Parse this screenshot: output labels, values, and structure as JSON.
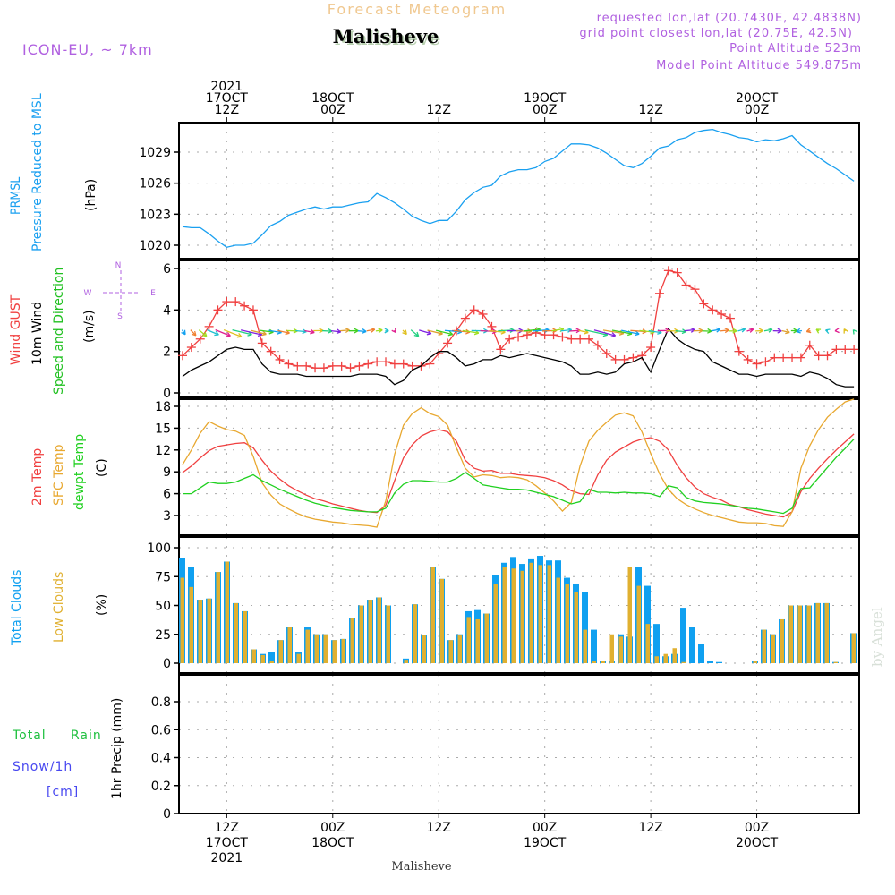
{
  "header": {
    "product_title": "Forecast Meteogram",
    "location": "Malisheve",
    "model": "ICON-EU, ~ 7km",
    "requested": "requested lon,lat (20.7430E, 42.4838N)",
    "grid_point": "grid point closest lon,lat (20.75E, 42.5N)",
    "point_altitude": "Point Altitude 523m",
    "model_altitude": "Model Point Altitude 549.875m",
    "footer_location": "Malisheve",
    "watermark": "by Angel"
  },
  "colors": {
    "pressure": "#1aa0f0",
    "gust": "#f04040",
    "wind10m": "#000000",
    "t2m": "#f04040",
    "sfc": "#e8a830",
    "dewpt": "#20d020",
    "total_clouds": "#10a0f0",
    "low_clouds": "#e0b030",
    "label_purple": "#b060e0",
    "title_gold": "#f0c890"
  },
  "time_axis": {
    "start": "2021-10-17 07Z",
    "step_hours": 1,
    "top_labels": [
      {
        "hour": 5,
        "lines": [
          "2021",
          "17OCT",
          "12Z"
        ]
      },
      {
        "hour": 17,
        "lines": [
          "18OCT",
          "00Z"
        ]
      },
      {
        "hour": 29,
        "lines": [
          "12Z"
        ]
      },
      {
        "hour": 41,
        "lines": [
          "19OCT",
          "00Z"
        ]
      },
      {
        "hour": 53,
        "lines": [
          "12Z"
        ]
      },
      {
        "hour": 65,
        "lines": [
          "20OCT",
          "00Z"
        ]
      }
    ],
    "bottom_labels": [
      {
        "hour": 5,
        "lines": [
          "12Z",
          "17OCT",
          "2021"
        ]
      },
      {
        "hour": 17,
        "lines": [
          "00Z",
          "18OCT"
        ]
      },
      {
        "hour": 29,
        "lines": [
          "12Z"
        ]
      },
      {
        "hour": 41,
        "lines": [
          "00Z",
          "19OCT"
        ]
      },
      {
        "hour": 53,
        "lines": [
          "12Z"
        ]
      },
      {
        "hour": 65,
        "lines": [
          "00Z",
          "20OCT"
        ]
      }
    ]
  },
  "chart_data": [
    {
      "type": "line",
      "id": "pressure",
      "labels": [
        "PRMSL",
        "Pressure Reduced to MSL",
        "(hPa)"
      ],
      "ylim": [
        1018,
        1032
      ],
      "yticks": [
        1020,
        1023,
        1026,
        1029
      ],
      "grid": true,
      "series": [
        {
          "name": "PRMSL",
          "values": [
            1021.8,
            1021.7,
            1021.7,
            1021.1,
            1020.4,
            1019.8,
            1020.0,
            1020.0,
            1020.2,
            1021.0,
            1021.9,
            1022.3,
            1022.9,
            1023.2,
            1023.5,
            1023.7,
            1023.5,
            1023.7,
            1023.7,
            1023.9,
            1024.1,
            1024.2,
            1025.0,
            1024.6,
            1024.1,
            1023.5,
            1022.8,
            1022.4,
            1022.1,
            1022.4,
            1022.4,
            1023.3,
            1024.4,
            1025.1,
            1025.6,
            1025.8,
            1026.7,
            1027.1,
            1027.3,
            1027.3,
            1027.5,
            1028.1,
            1028.4,
            1029.1,
            1029.8,
            1029.8,
            1029.7,
            1029.4,
            1028.9,
            1028.3,
            1027.7,
            1027.5,
            1027.9,
            1028.6,
            1029.4,
            1029.6,
            1030.2,
            1030.4,
            1030.9,
            1031.1,
            1031.2,
            1030.9,
            1030.7,
            1030.4,
            1030.3,
            1030.0,
            1030.2,
            1030.1,
            1030.3,
            1030.6,
            1029.7,
            1029.1,
            1028.5,
            1027.9,
            1027.4,
            1026.8,
            1026.2
          ]
        }
      ]
    },
    {
      "type": "line",
      "id": "wind",
      "labels": [
        "Wind GUST",
        "10m Wind",
        "Speed and Direction",
        "(m/s)"
      ],
      "compass": {
        "n": "N",
        "s": "S",
        "w": "W",
        "e": "E"
      },
      "ylim": [
        -0.3,
        6.3
      ],
      "yticks": [
        0,
        2,
        4,
        6
      ],
      "grid": true,
      "series": [
        {
          "name": "Wind GUST",
          "values": [
            1.8,
            2.2,
            2.6,
            3.2,
            4.0,
            4.4,
            4.4,
            4.2,
            4.0,
            2.4,
            2.0,
            1.6,
            1.4,
            1.3,
            1.3,
            1.2,
            1.2,
            1.3,
            1.3,
            1.2,
            1.3,
            1.4,
            1.5,
            1.5,
            1.4,
            1.4,
            1.3,
            1.3,
            1.4,
            1.9,
            2.4,
            3.0,
            3.6,
            4.0,
            3.8,
            3.2,
            2.1,
            2.6,
            2.7,
            2.8,
            2.9,
            2.8,
            2.8,
            2.7,
            2.6,
            2.6,
            2.6,
            2.3,
            1.9,
            1.6,
            1.6,
            1.7,
            1.8,
            2.2,
            4.8,
            5.9,
            5.8,
            5.2,
            5.0,
            4.3,
            4.0,
            3.8,
            3.6,
            2.0,
            1.6,
            1.4,
            1.5,
            1.7,
            1.7,
            1.7,
            1.7,
            2.3,
            1.8,
            1.8,
            2.1,
            2.1,
            2.1
          ]
        },
        {
          "name": "10m Wind",
          "values": [
            0.8,
            1.1,
            1.3,
            1.5,
            1.8,
            2.1,
            2.2,
            2.1,
            2.1,
            1.4,
            1.0,
            0.9,
            0.9,
            0.9,
            0.8,
            0.8,
            0.8,
            0.8,
            0.8,
            0.8,
            0.9,
            0.9,
            0.9,
            0.8,
            0.4,
            0.6,
            1.1,
            1.3,
            1.7,
            2.0,
            2.0,
            1.7,
            1.3,
            1.4,
            1.6,
            1.6,
            1.8,
            1.7,
            1.8,
            1.9,
            1.8,
            1.7,
            1.6,
            1.5,
            1.3,
            0.9,
            0.9,
            1.0,
            0.9,
            1.0,
            1.4,
            1.5,
            1.7,
            1.0,
            2.1,
            3.1,
            2.6,
            2.3,
            2.1,
            2.0,
            1.5,
            1.3,
            1.1,
            0.9,
            0.9,
            0.8,
            0.9,
            0.9,
            0.9,
            0.9,
            0.8,
            1.0,
            0.9,
            0.7,
            0.4,
            0.3,
            0.3
          ]
        }
      ],
      "wind_arrows_note": "direction arrows drawn along ~3 m/s, colored by hour"
    },
    {
      "type": "line",
      "id": "temperature",
      "labels": [
        "2m Temp",
        "SFC Temp",
        "dewpt Temp",
        "(C)"
      ],
      "ylim": [
        0,
        19
      ],
      "yticks": [
        3,
        6,
        9,
        12,
        15,
        18
      ],
      "grid": true,
      "series": [
        {
          "name": "2m Temp",
          "values": [
            8.9,
            9.8,
            10.9,
            11.9,
            12.5,
            12.7,
            12.9,
            13.0,
            12.3,
            10.6,
            9.1,
            8.0,
            7.1,
            6.4,
            5.8,
            5.3,
            5.0,
            4.6,
            4.3,
            4.0,
            3.7,
            3.5,
            3.4,
            4.4,
            7.8,
            10.9,
            12.7,
            13.9,
            14.5,
            14.8,
            14.5,
            13.2,
            10.6,
            9.5,
            9.1,
            9.2,
            8.8,
            8.8,
            8.6,
            8.5,
            8.4,
            8.2,
            7.8,
            7.2,
            6.4,
            6.0,
            5.9,
            8.6,
            10.6,
            11.7,
            12.4,
            13.1,
            13.5,
            13.7,
            13.2,
            12.0,
            9.9,
            8.2,
            6.9,
            6.0,
            5.5,
            5.1,
            4.5,
            4.2,
            3.8,
            3.5,
            3.2,
            3.0,
            2.8,
            3.5,
            6.3,
            8.1,
            9.5,
            10.8,
            12.0,
            13.1,
            14.2
          ]
        },
        {
          "name": "SFC Temp",
          "values": [
            10.0,
            12.0,
            14.3,
            15.9,
            15.3,
            14.8,
            14.6,
            14.0,
            11.1,
            7.5,
            5.8,
            4.6,
            3.9,
            3.3,
            2.8,
            2.5,
            2.3,
            2.1,
            2.0,
            1.8,
            1.7,
            1.6,
            1.4,
            5.0,
            11.4,
            15.4,
            17.0,
            17.8,
            17.0,
            16.6,
            15.4,
            12.3,
            9.5,
            8.3,
            8.6,
            8.5,
            8.2,
            8.3,
            8.2,
            7.9,
            7.1,
            6.1,
            5.0,
            3.6,
            4.8,
            9.8,
            13.2,
            14.7,
            15.8,
            16.8,
            17.1,
            16.7,
            14.5,
            11.5,
            8.7,
            6.6,
            5.3,
            4.5,
            3.9,
            3.4,
            3.0,
            2.7,
            2.4,
            2.1,
            2.0,
            2.0,
            1.9,
            1.6,
            1.5,
            3.5,
            9.5,
            12.6,
            14.8,
            16.5,
            17.6,
            18.6,
            19.0
          ]
        },
        {
          "name": "dewpt Temp",
          "values": [
            6.0,
            6.0,
            6.8,
            7.6,
            7.4,
            7.4,
            7.6,
            8.1,
            8.6,
            7.8,
            7.2,
            6.6,
            6.1,
            5.6,
            5.1,
            4.7,
            4.4,
            4.1,
            3.9,
            3.7,
            3.6,
            3.5,
            3.5,
            4.0,
            6.1,
            7.3,
            7.8,
            7.8,
            7.7,
            7.6,
            7.6,
            8.1,
            8.9,
            8.1,
            7.2,
            7.0,
            6.8,
            6.6,
            6.6,
            6.5,
            6.2,
            5.9,
            5.6,
            5.1,
            4.6,
            4.9,
            6.6,
            6.2,
            6.2,
            6.1,
            6.2,
            6.1,
            6.1,
            6.0,
            5.6,
            7.1,
            6.8,
            5.5,
            5.0,
            4.8,
            4.7,
            4.6,
            4.4,
            4.2,
            4.0,
            3.9,
            3.7,
            3.5,
            3.3,
            4.0,
            6.7,
            6.8,
            8.2,
            9.6,
            11.0,
            12.2,
            13.5
          ]
        }
      ]
    },
    {
      "type": "bar",
      "id": "clouds",
      "labels": [
        "Total Clouds",
        "Low Clouds",
        "(%)"
      ],
      "ylim": [
        0,
        100
      ],
      "yticks": [
        0,
        25,
        50,
        75,
        100
      ],
      "grid": true,
      "series": [
        {
          "name": "Total Clouds",
          "values": [
            91,
            83,
            55,
            56,
            79,
            88,
            52,
            45,
            12,
            8,
            10,
            20,
            31,
            10,
            31,
            25,
            25,
            20,
            21,
            39,
            50,
            55,
            57,
            50,
            0,
            4,
            51,
            24,
            83,
            73,
            20,
            25,
            45,
            46,
            43,
            76,
            87,
            92,
            86,
            90,
            93,
            89,
            89,
            74,
            69,
            62,
            29,
            2,
            2,
            25,
            23,
            83,
            67,
            34,
            6,
            8,
            48,
            31,
            17,
            2,
            1,
            0,
            0,
            0,
            2,
            29,
            25,
            38,
            50,
            50,
            50,
            52,
            52,
            1,
            0,
            26,
            27,
            35
          ]
        },
        {
          "name": "Low Clouds",
          "values": [
            74,
            66,
            55,
            56,
            79,
            88,
            52,
            45,
            12,
            7,
            2,
            20,
            31,
            8,
            29,
            25,
            25,
            20,
            21,
            39,
            50,
            55,
            57,
            50,
            0,
            3,
            51,
            24,
            83,
            73,
            20,
            24,
            40,
            38,
            43,
            69,
            83,
            82,
            80,
            87,
            85,
            85,
            74,
            69,
            62,
            29,
            2,
            2,
            25,
            23,
            83,
            67,
            34,
            6,
            8,
            13,
            1,
            0,
            0,
            0,
            0,
            0,
            0,
            0,
            2,
            29,
            25,
            38,
            50,
            50,
            50,
            52,
            52,
            1,
            0,
            26,
            27,
            35
          ]
        }
      ]
    },
    {
      "type": "bar",
      "id": "precip",
      "labels": [
        "Total",
        "Rain",
        "Snow/1h",
        "[cm]",
        "1hr Precip (mm)"
      ],
      "ylim": [
        0,
        1.0
      ],
      "yticks": [
        "0",
        "0.2",
        "0.4",
        "0.6",
        "0.8"
      ],
      "grid": true,
      "series": [
        {
          "name": "Total Rain",
          "values": []
        },
        {
          "name": "Snow/1h",
          "values": []
        }
      ]
    }
  ]
}
